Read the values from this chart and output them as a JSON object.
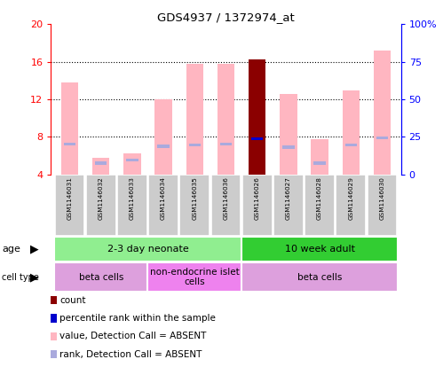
{
  "title": "GDS4937 / 1372974_at",
  "samples": [
    "GSM1146031",
    "GSM1146032",
    "GSM1146033",
    "GSM1146034",
    "GSM1146035",
    "GSM1146036",
    "GSM1146026",
    "GSM1146027",
    "GSM1146028",
    "GSM1146029",
    "GSM1146030"
  ],
  "value_bars": [
    13.8,
    5.8,
    6.2,
    12.0,
    15.8,
    15.8,
    16.3,
    12.6,
    7.8,
    13.0,
    17.2
  ],
  "rank_bars": [
    7.2,
    5.2,
    5.5,
    7.0,
    7.1,
    7.2,
    7.8,
    6.9,
    5.2,
    7.1,
    7.9
  ],
  "is_highlighted": [
    false,
    false,
    false,
    false,
    false,
    false,
    true,
    false,
    false,
    false,
    false
  ],
  "ylim": [
    4,
    20
  ],
  "y2lim": [
    0,
    100
  ],
  "yticks": [
    4,
    8,
    12,
    16,
    20
  ],
  "ytick_labels": [
    "4",
    "8",
    "12",
    "16",
    "20"
  ],
  "y2ticks": [
    0,
    25,
    50,
    75,
    100
  ],
  "y2tick_labels": [
    "0",
    "25",
    "50",
    "75",
    "100%"
  ],
  "age_groups": [
    {
      "label": "2-3 day neonate",
      "start": 0,
      "end": 6,
      "color": "#90EE90"
    },
    {
      "label": "10 week adult",
      "start": 6,
      "end": 11,
      "color": "#32CD32"
    }
  ],
  "cell_type_groups": [
    {
      "label": "beta cells",
      "start": 0,
      "end": 3,
      "color": "#DDA0DD"
    },
    {
      "label": "non-endocrine islet\ncells",
      "start": 3,
      "end": 6,
      "color": "#EE82EE"
    },
    {
      "label": "beta cells",
      "start": 6,
      "end": 11,
      "color": "#DDA0DD"
    }
  ],
  "value_bar_color_normal": "#FFB6C1",
  "value_bar_color_highlight": "#8B0000",
  "rank_bar_color_normal": "#AAAADD",
  "rank_bar_color_highlight": "#0000CD",
  "left_axis_color": "#FF0000",
  "right_axis_color": "#0000FF",
  "bar_width": 0.55,
  "rank_bar_height": 0.3,
  "legend_items": [
    {
      "label": "count",
      "color": "#8B0000",
      "square": true
    },
    {
      "label": "percentile rank within the sample",
      "color": "#0000CD",
      "square": true
    },
    {
      "label": "value, Detection Call = ABSENT",
      "color": "#FFB6C1",
      "square": true
    },
    {
      "label": "rank, Detection Call = ABSENT",
      "color": "#AAAADD",
      "square": true
    }
  ],
  "sample_box_color": "#CCCCCC",
  "background_color": "#FFFFFF"
}
